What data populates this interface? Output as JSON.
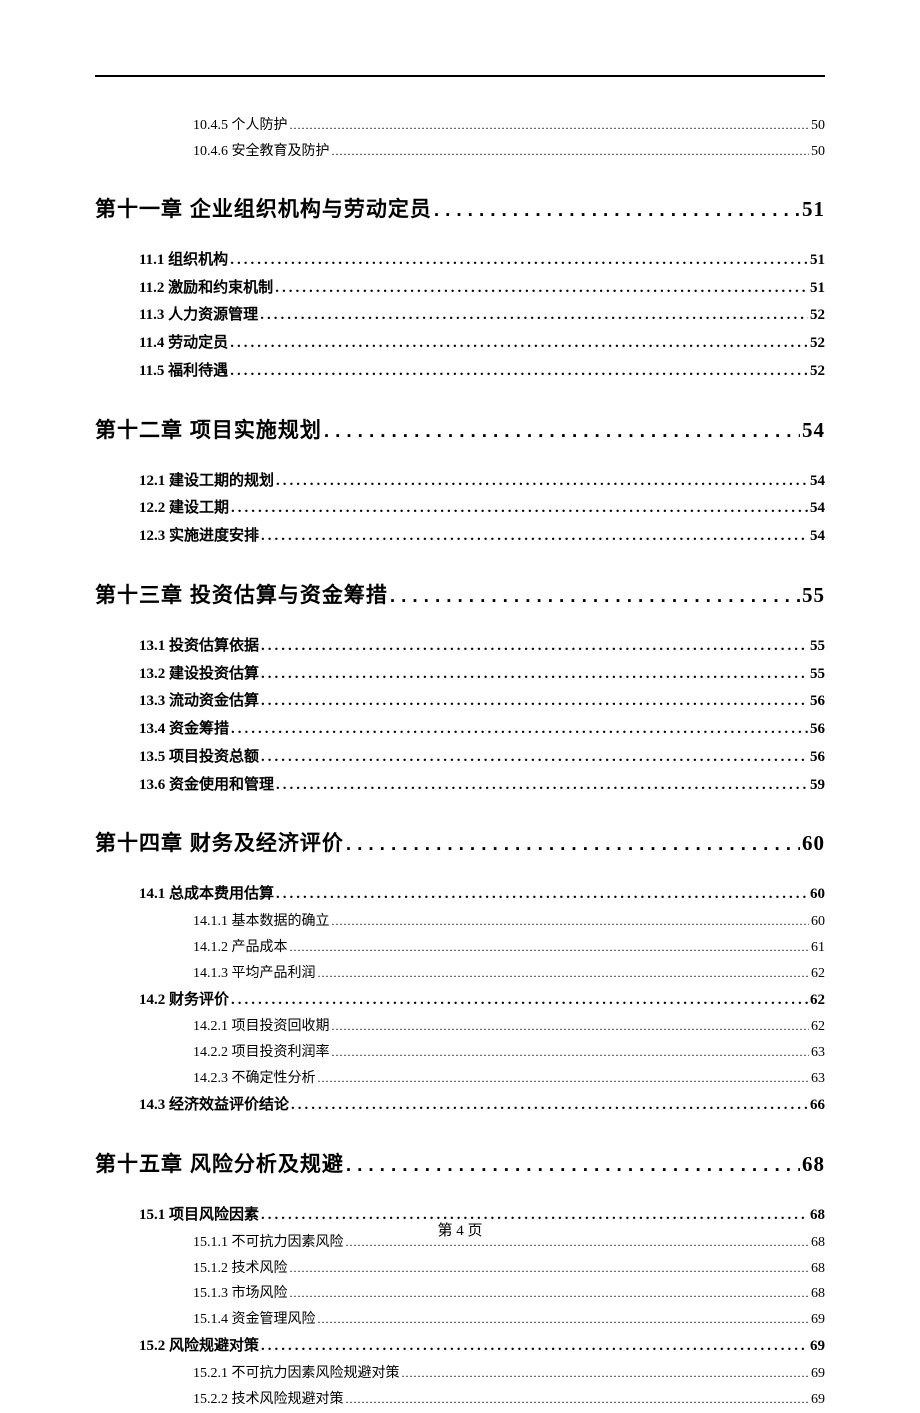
{
  "footer": "第 4 页",
  "dotCharChapter": ". ",
  "dotCharSection": ". ",
  "dotCharSubsection": ".",
  "entries": [
    {
      "level": "subsection",
      "label": "10.4.5 个人防护",
      "page": "50"
    },
    {
      "level": "subsection",
      "label": "10.4.6 安全教育及防护",
      "page": "50"
    },
    {
      "level": "chapter",
      "label": "第十一章 企业组织机构与劳动定员",
      "page": "51"
    },
    {
      "level": "section",
      "label": "11.1 组织机构",
      "page": "51"
    },
    {
      "level": "section",
      "label": "11.2 激励和约束机制",
      "page": "51"
    },
    {
      "level": "section",
      "label": "11.3 人力资源管理",
      "page": "52"
    },
    {
      "level": "section",
      "label": "11.4 劳动定员",
      "page": "52"
    },
    {
      "level": "section",
      "label": "11.5 福利待遇",
      "page": "52"
    },
    {
      "level": "chapter",
      "label": "第十二章 项目实施规划",
      "page": "54"
    },
    {
      "level": "section",
      "label": "12.1 建设工期的规划",
      "page": "54"
    },
    {
      "level": "section",
      "label": "12.2 建设工期",
      "page": "54"
    },
    {
      "level": "section",
      "label": "12.3 实施进度安排",
      "page": "54"
    },
    {
      "level": "chapter",
      "label": "第十三章 投资估算与资金筹措",
      "page": "55"
    },
    {
      "level": "section",
      "label": "13.1 投资估算依据",
      "page": "55"
    },
    {
      "level": "section",
      "label": "13.2 建设投资估算",
      "page": "55"
    },
    {
      "level": "section",
      "label": "13.3 流动资金估算",
      "page": "56"
    },
    {
      "level": "section",
      "label": "13.4 资金筹措",
      "page": "56"
    },
    {
      "level": "section",
      "label": "13.5 项目投资总额",
      "page": "56"
    },
    {
      "level": "section",
      "label": "13.6 资金使用和管理",
      "page": "59"
    },
    {
      "level": "chapter",
      "label": "第十四章 财务及经济评价",
      "page": "60"
    },
    {
      "level": "section",
      "label": "14.1 总成本费用估算",
      "page": "60"
    },
    {
      "level": "subsection",
      "label": "14.1.1 基本数据的确立",
      "page": "60"
    },
    {
      "level": "subsection",
      "label": "14.1.2 产品成本",
      "page": "61"
    },
    {
      "level": "subsection",
      "label": "14.1.3 平均产品利润",
      "page": "62"
    },
    {
      "level": "section",
      "label": "14.2 财务评价",
      "page": "62"
    },
    {
      "level": "subsection",
      "label": "14.2.1 项目投资回收期",
      "page": "62"
    },
    {
      "level": "subsection",
      "label": "14.2.2 项目投资利润率",
      "page": "63"
    },
    {
      "level": "subsection",
      "label": "14.2.3 不确定性分析",
      "page": "63"
    },
    {
      "level": "section",
      "label": "14.3 经济效益评价结论",
      "page": "66"
    },
    {
      "level": "chapter",
      "label": "第十五章 风险分析及规避",
      "page": "68"
    },
    {
      "level": "section",
      "label": "15.1 项目风险因素",
      "page": "68"
    },
    {
      "level": "subsection",
      "label": "15.1.1 不可抗力因素风险",
      "page": "68"
    },
    {
      "level": "subsection",
      "label": "15.1.2 技术风险",
      "page": "68"
    },
    {
      "level": "subsection",
      "label": "15.1.3 市场风险",
      "page": "68"
    },
    {
      "level": "subsection",
      "label": "15.1.4 资金管理风险",
      "page": "69"
    },
    {
      "level": "section",
      "label": "15.2 风险规避对策",
      "page": "69"
    },
    {
      "level": "subsection",
      "label": "15.2.1 不可抗力因素风险规避对策",
      "page": "69"
    },
    {
      "level": "subsection",
      "label": "15.2.2 技术风险规避对策",
      "page": "69"
    }
  ]
}
